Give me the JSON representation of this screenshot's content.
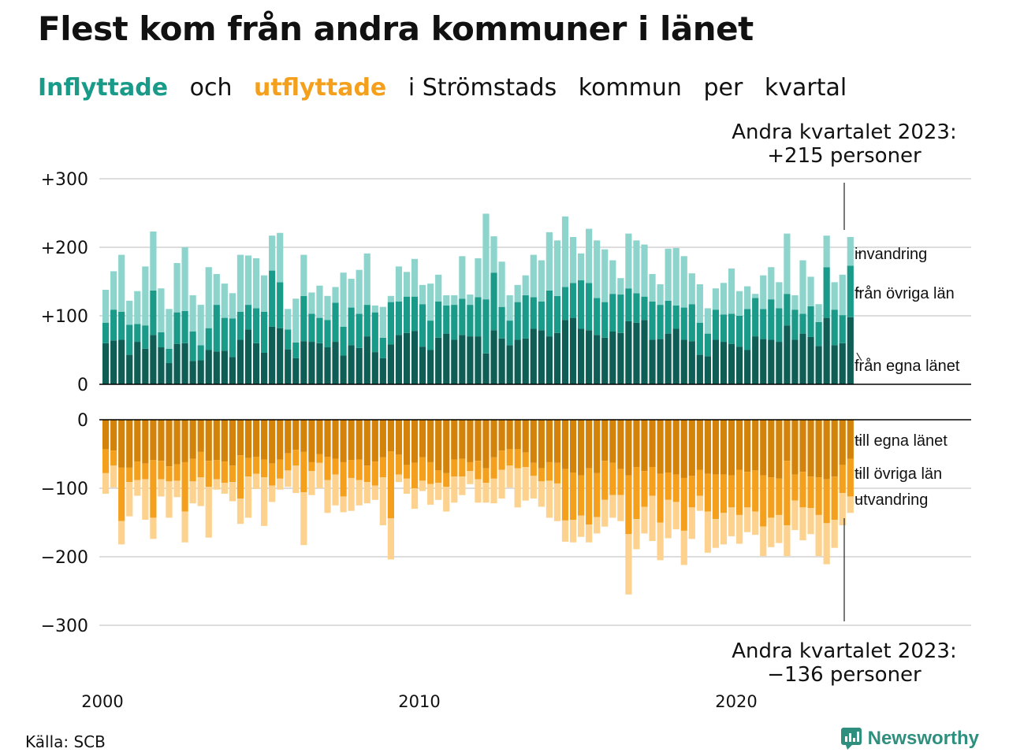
{
  "header": {
    "title": "Flest kom från andra kommuner i länet",
    "subtitle_parts": [
      "Inflyttade",
      "och",
      "utflyttade",
      "i Strömstads",
      "kommun",
      "per",
      "kvartal"
    ]
  },
  "footer": {
    "source": "Källa: SCB",
    "brand": "Newsworthy",
    "brand_icon": "bar-chart-speech-bubble-icon"
  },
  "colors": {
    "in_own": "#0e5e55",
    "in_other": "#1a9b8a",
    "in_immig": "#8dd5cc",
    "out_own": "#d4830a",
    "out_other": "#f5a01c",
    "out_emig": "#fcd28e",
    "grid": "#dddddd",
    "axis": "#000000"
  },
  "chart_data": {
    "type": "bar",
    "stacked": true,
    "x_start": 2000,
    "x_step": 0.25,
    "xticks": [
      "2000",
      "2010",
      "2020"
    ],
    "grid": true,
    "panels": [
      {
        "id": "inflow",
        "ylim": [
          0,
          300
        ],
        "yticks": [
          "0",
          "+100",
          "+200",
          "+300"
        ],
        "series": [
          {
            "name": "från egna länet",
            "values": [
              60,
              64,
              65,
              43,
              62,
              52,
              72,
              54,
              31,
              59,
              60,
              34,
              35,
              50,
              48,
              49,
              40,
              65,
              80,
              60,
              46,
              84,
              82,
              51,
              38,
              63,
              62,
              60,
              54,
              62,
              42,
              57,
              53,
              70,
              47,
              38,
              58,
              72,
              75,
              78,
              55,
              50,
              68,
              74,
              65,
              72,
              70,
              70,
              45,
              79,
              67,
              57,
              65,
              67,
              81,
              79,
              70,
              75,
              94,
              97,
              81,
              79,
              72,
              68,
              77,
              75,
              92,
              90,
              94,
              65,
              66,
              74,
              81,
              65,
              63,
              43,
              41,
              65,
              62,
              59,
              55,
              50,
              70,
              66,
              65,
              62,
              86,
              65,
              74,
              69,
              56,
              97,
              57,
              60,
              98
            ]
          },
          {
            "name": "från övriga län",
            "values": [
              30,
              45,
              41,
              44,
              26,
              34,
              65,
              22,
              21,
              46,
              47,
              43,
              22,
              32,
              68,
              48,
              56,
              41,
              36,
              51,
              60,
              82,
              67,
              29,
              23,
              66,
              41,
              37,
              40,
              57,
              42,
              55,
              50,
              46,
              58,
              30,
              62,
              49,
              53,
              50,
              62,
              43,
              53,
              41,
              51,
              53,
              46,
              57,
              79,
              84,
              46,
              36,
              55,
              63,
              46,
              42,
              67,
              54,
              48,
              51,
              71,
              69,
              54,
              52,
              55,
              56,
              48,
              43,
              34,
              56,
              50,
              48,
              34,
              47,
              54,
              47,
              33,
              44,
              40,
              44,
              45,
              60,
              56,
              44,
              59,
              49,
              46,
              44,
              29,
              45,
              35,
              74,
              52,
              41,
              75
            ]
          },
          {
            "name": "invandring",
            "values": [
              48,
              56,
              83,
              35,
              48,
              86,
              86,
              64,
              58,
              72,
              93,
              53,
              59,
              89,
              45,
              50,
              37,
              83,
              72,
              73,
              53,
              51,
              72,
              30,
              64,
              60,
              31,
              47,
              35,
              23,
              79,
              42,
              64,
              75,
              10,
              45,
              9,
              51,
              36,
              55,
              28,
              54,
              39,
              15,
              14,
              62,
              15,
              57,
              125,
              53,
              66,
              37,
              25,
              29,
              62,
              60,
              85,
              81,
              103,
              67,
              39,
              79,
              84,
              77,
              49,
              24,
              80,
              77,
              76,
              40,
              30,
              76,
              84,
              75,
              45,
              56,
              37,
              31,
              46,
              66,
              36,
              33,
              6,
              49,
              47,
              38,
              88,
              21,
              78,
              43,
              26,
              46,
              40,
              59,
              42
            ]
          }
        ],
        "series_labels": [
          "invandring",
          "från övriga län",
          "från egna länet"
        ],
        "annotation": [
          "Andra kvartalet 2023:",
          "+215 personer"
        ],
        "last_value": 215
      },
      {
        "id": "outflow",
        "ylim": [
          -300,
          0
        ],
        "yticks": [
          "0",
          "−100",
          "−200",
          "−300"
        ],
        "series": [
          {
            "name": "till egna länet",
            "values": [
              -43,
              -45,
              -70,
              -70,
              -61,
              -64,
              -59,
              -60,
              -68,
              -65,
              -62,
              -57,
              -47,
              -60,
              -59,
              -61,
              -67,
              -52,
              -56,
              -54,
              -58,
              -64,
              -58,
              -49,
              -44,
              -47,
              -62,
              -50,
              -54,
              -57,
              -62,
              -59,
              -58,
              -67,
              -61,
              -55,
              -46,
              -51,
              -66,
              -63,
              -55,
              -62,
              -74,
              -78,
              -58,
              -57,
              -62,
              -60,
              -71,
              -55,
              -45,
              -43,
              -43,
              -48,
              -63,
              -71,
              -62,
              -63,
              -72,
              -77,
              -81,
              -71,
              -78,
              -60,
              -63,
              -72,
              -81,
              -69,
              -75,
              -69,
              -79,
              -77,
              -80,
              -85,
              -82,
              -73,
              -79,
              -80,
              -80,
              -81,
              -73,
              -76,
              -74,
              -81,
              -84,
              -86,
              -60,
              -80,
              -76,
              -83,
              -84,
              -87,
              -83,
              -66,
              -57
            ]
          },
          {
            "name": "till övriga län",
            "values": [
              -35,
              -22,
              -78,
              -21,
              -27,
              -23,
              -84,
              -27,
              -22,
              -24,
              -72,
              -33,
              -37,
              -38,
              -28,
              -31,
              -24,
              -63,
              -27,
              -25,
              -26,
              -32,
              -28,
              -25,
              -23,
              -59,
              -13,
              -13,
              -34,
              -23,
              -50,
              -26,
              -30,
              -24,
              -35,
              -29,
              -98,
              -29,
              -20,
              -37,
              -34,
              -32,
              -18,
              -20,
              -25,
              -26,
              -13,
              -27,
              -21,
              -31,
              -28,
              -24,
              -28,
              -21,
              -19,
              -19,
              -27,
              -30,
              -75,
              -69,
              -59,
              -82,
              -64,
              -57,
              -47,
              -38,
              -86,
              -76,
              -52,
              -42,
              -71,
              -40,
              -40,
              -77,
              -46,
              -38,
              -55,
              -65,
              -56,
              -47,
              -66,
              -52,
              -60,
              -75,
              -59,
              -53,
              -94,
              -38,
              -52,
              -46,
              -55,
              -64,
              -63,
              -41,
              -55
            ]
          },
          {
            "name": "utvandring",
            "values": [
              -30,
              -32,
              -34,
              -50,
              -23,
              -59,
              -31,
              -25,
              -53,
              -24,
              -45,
              -32,
              -42,
              -74,
              -15,
              -16,
              -28,
              -37,
              -60,
              -22,
              -71,
              -24,
              -16,
              -24,
              -40,
              -77,
              -35,
              -37,
              -48,
              -45,
              -23,
              -48,
              -37,
              -31,
              -21,
              -70,
              -60,
              -11,
              -22,
              -30,
              -15,
              -30,
              -25,
              -36,
              -38,
              -27,
              -19,
              -34,
              -29,
              -36,
              -42,
              -32,
              -57,
              -49,
              -33,
              -37,
              -54,
              -55,
              -31,
              -33,
              -31,
              -26,
              -24,
              -39,
              -33,
              -38,
              -88,
              -44,
              -39,
              -66,
              -55,
              -56,
              -40,
              -50,
              -46,
              -22,
              -60,
              -42,
              -46,
              -42,
              -42,
              -36,
              -34,
              -43,
              -43,
              -41,
              -45,
              -43,
              -48,
              -38,
              -60,
              -60,
              -41,
              -47,
              -24
            ]
          }
        ],
        "series_labels": [
          "till egna länet",
          "till övriga län",
          "utvandring"
        ],
        "annotation": [
          "Andra kvartalet 2023:",
          "−136 personer"
        ],
        "last_value": -136
      }
    ]
  }
}
